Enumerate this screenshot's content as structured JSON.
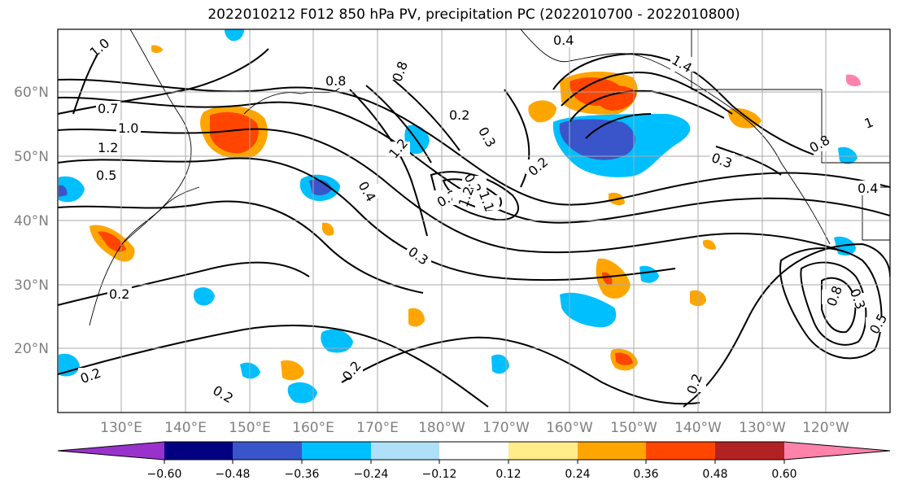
{
  "title": "2022010212 F012 850 hPa PV, precipitation PC (2022010700 - 2022010800)",
  "map": {
    "latitude_labels": [
      "60°N",
      "50°N",
      "40°N",
      "30°N",
      "20°N"
    ],
    "longitude_labels": [
      "130°E",
      "140°E",
      "150°E",
      "160°E",
      "170°E",
      "180°W",
      "170°W",
      "160°W",
      "150°W",
      "140°W",
      "130°W",
      "120°W"
    ],
    "pv_contour_labels": [
      "1.0",
      "0.7",
      "1.0",
      "1.2",
      "0.5",
      "0.8",
      "0.8",
      "0.4",
      "0.2",
      "0.3",
      "1.2",
      "0.2",
      "1.4",
      "0.3",
      "0.2",
      "0.4",
      "0.2",
      "1.1",
      "1.2",
      "0.3",
      "0.2",
      "0.2",
      "0.2",
      "0.2",
      "0.8",
      "0.5",
      "0.3",
      "0.4",
      "0.8",
      "0.2",
      "1"
    ]
  },
  "colorbar": {
    "tick_labels": [
      "−0.60",
      "−0.48",
      "−0.36",
      "−0.24",
      "−0.12",
      "0.12",
      "0.24",
      "0.36",
      "0.48",
      "0.60"
    ],
    "colors": [
      "#9932cc",
      "#000080",
      "#3a55c9",
      "#00bfff",
      "#b0e0f8",
      "#ffffff",
      "#ffec8b",
      "#ffa500",
      "#ff4500",
      "#b22222",
      "#ff82ab"
    ]
  }
}
